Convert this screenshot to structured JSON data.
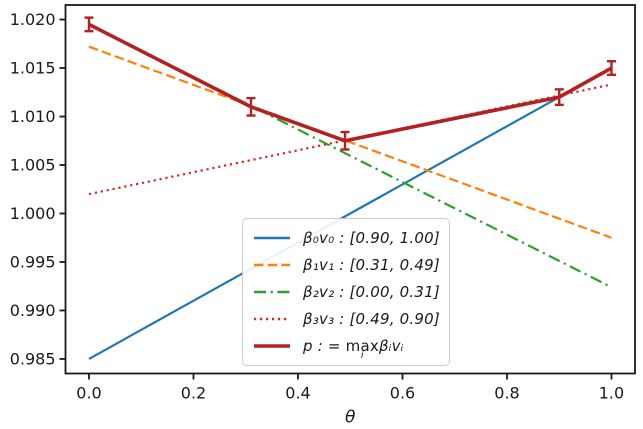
{
  "figure": {
    "background": "#ffffff"
  },
  "chart_data": {
    "type": "line",
    "title": "",
    "xlabel": "θ",
    "ylabel": "",
    "xlim": [
      -0.045,
      1.045
    ],
    "ylim": [
      0.9835,
      1.0215
    ],
    "xticks": [
      0.0,
      0.2,
      0.4,
      0.6,
      0.8,
      1.0
    ],
    "xtick_labels": [
      "0.0",
      "0.2",
      "0.4",
      "0.6",
      "0.8",
      "1.0"
    ],
    "yticks": [
      0.985,
      0.99,
      0.995,
      1.0,
      1.005,
      1.01,
      1.015,
      1.02
    ],
    "ytick_labels": [
      "0.985",
      "0.990",
      "0.995",
      "1.000",
      "1.005",
      "1.010",
      "1.015",
      "1.020"
    ],
    "grid": false,
    "axis_color": "#1a1a1a",
    "legend_position": "lower center",
    "series": [
      {
        "name": "beta0_v0",
        "legend_label": "β₀v₀ : [0.90, 1.00]",
        "color": "#1f77b4",
        "linestyle": "solid",
        "linewidth": 2.2,
        "x": [
          0.0,
          1.0
        ],
        "y": [
          0.985,
          1.015
        ]
      },
      {
        "name": "beta1_v1",
        "legend_label": "β₁v₁ : [0.31, 0.49]",
        "color": "#ff7f0e",
        "linestyle": "dashed",
        "linewidth": 2.2,
        "x": [
          0.0,
          1.0
        ],
        "y": [
          1.0172,
          0.9975
        ]
      },
      {
        "name": "beta2_v2",
        "legend_label": "β₂v₂ : [0.00, 0.31]",
        "color": "#2ca02c",
        "linestyle": "dashdot",
        "linewidth": 2.2,
        "x": [
          0.0,
          1.0
        ],
        "y": [
          1.0195,
          0.9924
        ]
      },
      {
        "name": "beta3_v3",
        "legend_label": "β₃v₃ : [0.49, 0.90]",
        "color": "#d62728",
        "linestyle": "dotted",
        "linewidth": 2.2,
        "x": [
          0.0,
          1.0
        ],
        "y": [
          1.002,
          1.0133
        ]
      },
      {
        "name": "p_max",
        "legend_label": "p : = maxᵢ βᵢvᵢ",
        "color": "#b22222",
        "linestyle": "solid",
        "linewidth": 3.6,
        "errorbars": true,
        "x": [
          0.0,
          0.31,
          0.49,
          0.9,
          1.0
        ],
        "y": [
          1.0195,
          1.011,
          1.0075,
          1.012,
          1.015
        ],
        "yerr": [
          0.0007,
          0.0009,
          0.0009,
          0.0008,
          0.0007
        ]
      }
    ]
  },
  "legend": {
    "p_entry": {
      "lhs": "p : = ",
      "max": "max",
      "sub": "i",
      "rhs": "βᵢvᵢ"
    }
  }
}
